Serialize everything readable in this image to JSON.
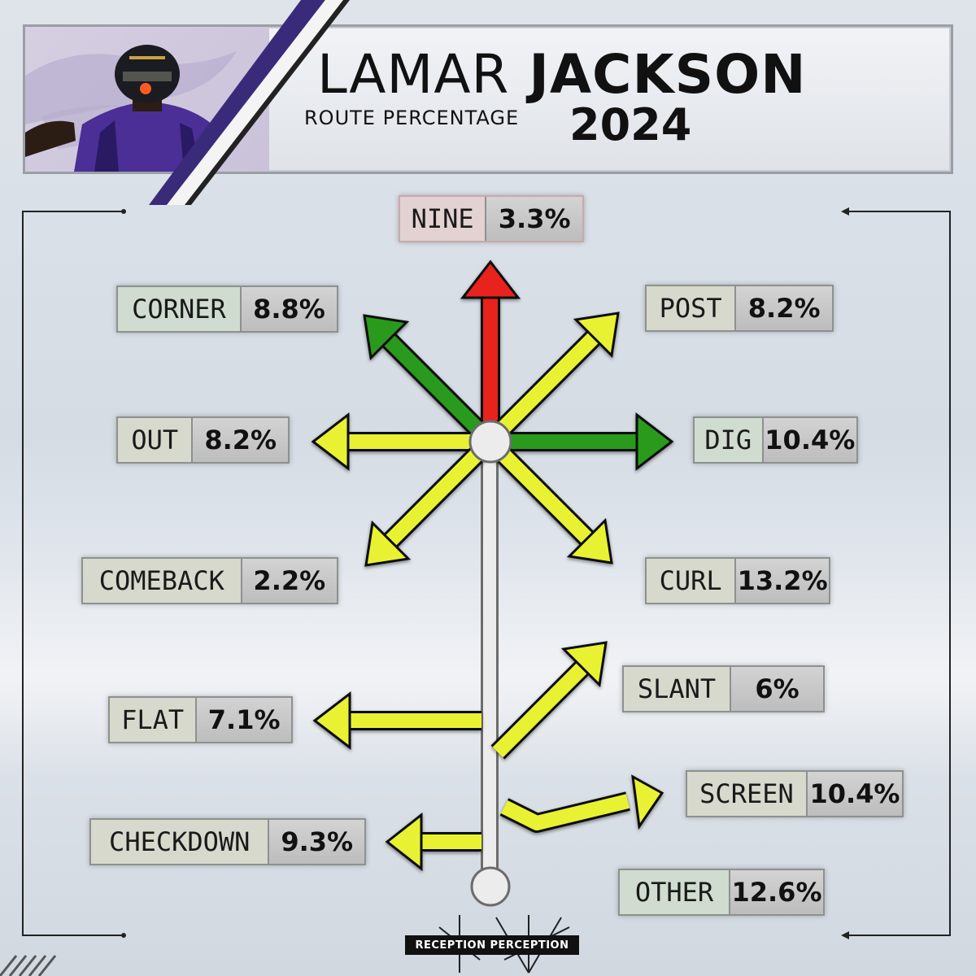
{
  "header": {
    "first_name": "LAMAR",
    "last_name": "JACKSON",
    "subtitle": "ROUTE PERCENTAGE",
    "year": "2024"
  },
  "routes": [
    {
      "name": "NINE",
      "pct": "3.3%",
      "color": "red"
    },
    {
      "name": "CORNER",
      "pct": "8.8%",
      "color": "green"
    },
    {
      "name": "POST",
      "pct": "8.2%",
      "color": "yellow"
    },
    {
      "name": "OUT",
      "pct": "8.2%",
      "color": "yellow"
    },
    {
      "name": "DIG",
      "pct": "10.4%",
      "color": "green"
    },
    {
      "name": "COMEBACK",
      "pct": "2.2%",
      "color": "yellow"
    },
    {
      "name": "CURL",
      "pct": "13.2%",
      "color": "yellow"
    },
    {
      "name": "SLANT",
      "pct": "6%",
      "color": "yellow"
    },
    {
      "name": "FLAT",
      "pct": "7.1%",
      "color": "yellow"
    },
    {
      "name": "SCREEN",
      "pct": "10.4%",
      "color": "yellow"
    },
    {
      "name": "CHECKDOWN",
      "pct": "9.3%",
      "color": "yellow"
    },
    {
      "name": "OTHER",
      "pct": "12.6%",
      "color": "green"
    }
  ],
  "colors": {
    "red": "#e8201c",
    "green": "#2a9a1e",
    "yellow": "#e8f230",
    "purple": "#3a2a7a"
  },
  "logo": "RECEPTION PERCEPTION"
}
